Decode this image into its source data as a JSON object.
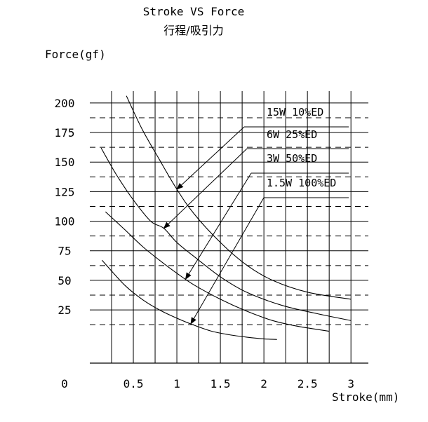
{
  "chart_data": {
    "type": "line",
    "title": "Stroke VS  Force",
    "subtitle": "行程/吸引力",
    "ylabel": "Force(gf)",
    "xlabel": "Stroke(mm)",
    "xlim": [
      0,
      3.2
    ],
    "ylim": [
      -20,
      210
    ],
    "grid": true,
    "x_ticks": [
      {
        "v": 0.5,
        "label": "0.5"
      },
      {
        "v": 1,
        "label": "1"
      },
      {
        "v": 1.5,
        "label": "1.5"
      },
      {
        "v": 2,
        "label": "2"
      },
      {
        "v": 2.5,
        "label": "2.5"
      },
      {
        "v": 3,
        "label": "3"
      }
    ],
    "origin_label": "0",
    "y_ticks": [
      {
        "v": 200,
        "label": "200"
      },
      {
        "v": 175,
        "label": "175"
      },
      {
        "v": 150,
        "label": "150"
      },
      {
        "v": 125,
        "label": "125"
      },
      {
        "v": 100,
        "label": "100"
      },
      {
        "v": 75,
        "label": "75"
      },
      {
        "v": 50,
        "label": "50"
      },
      {
        "v": 25,
        "label": "25"
      }
    ],
    "series": [
      {
        "name": "15W  10%ED",
        "x": [
          0.42,
          0.6,
          0.8,
          1.0,
          1.2,
          1.5,
          1.8,
          2.1,
          2.5,
          3.0
        ],
        "y": [
          206,
          178,
          152,
          127,
          106,
          82,
          63,
          50,
          40,
          34
        ]
      },
      {
        "name": "6W 25%ED",
        "x": [
          0.13,
          0.3,
          0.5,
          0.7,
          0.85,
          1.0,
          1.2,
          1.5,
          1.8,
          2.2,
          2.6,
          3.0
        ],
        "y": [
          162,
          140,
          118,
          100,
          94,
          82,
          70,
          53,
          40,
          29,
          22,
          16
        ]
      },
      {
        "name": "3W  50%ED",
        "x": [
          0.18,
          0.4,
          0.6,
          0.8,
          1.0,
          1.2,
          1.5,
          1.8,
          2.1,
          2.4,
          2.75
        ],
        "y": [
          108,
          93,
          79,
          67,
          56,
          46,
          34,
          24,
          16,
          11,
          7
        ]
      },
      {
        "name": "1.5W 100%ED",
        "x": [
          0.14,
          0.4,
          0.6,
          0.8,
          1.0,
          1.2,
          1.4,
          1.6,
          1.8,
          2.0,
          2.15
        ],
        "y": [
          67,
          46,
          34,
          25,
          18,
          12,
          7,
          4,
          2,
          0.5,
          0
        ]
      }
    ],
    "legend_position": "upper-right"
  }
}
